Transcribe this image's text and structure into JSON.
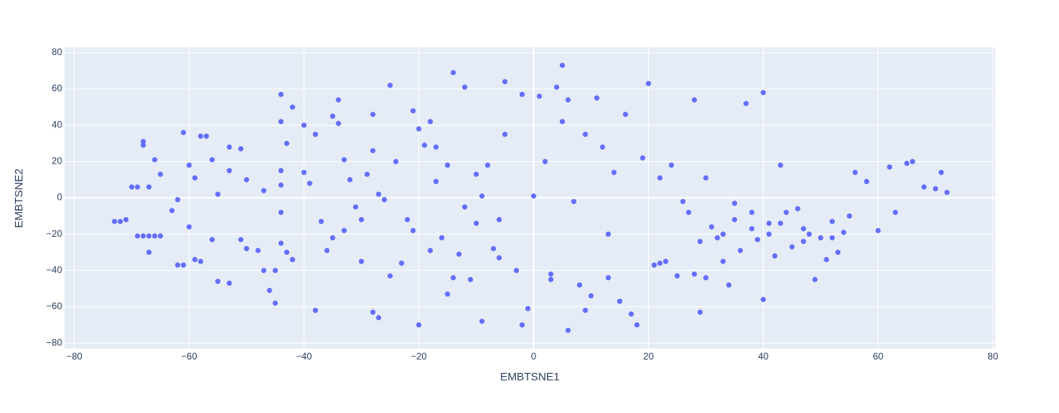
{
  "chart_data": {
    "type": "scatter",
    "color": "#636efa",
    "grid": true,
    "x_label": "EMBTSNE1",
    "y_label": "EMBTSNE2",
    "xlim": [
      -81.7,
      80.4
    ],
    "ylim": [
      -83,
      83
    ],
    "xticks": [
      {
        "value": -80,
        "label": "−80"
      },
      {
        "value": -60,
        "label": "−60"
      },
      {
        "value": -40,
        "label": "−40"
      },
      {
        "value": -20,
        "label": "−20"
      },
      0,
      20,
      40,
      60,
      80
    ],
    "yticks": [
      {
        "value": -80,
        "label": "−80"
      },
      {
        "value": -60,
        "label": "−60"
      },
      {
        "value": -40,
        "label": "−40"
      },
      {
        "value": -20,
        "label": "−20"
      },
      0,
      20,
      40,
      60,
      80
    ],
    "x": [
      -73,
      -72,
      -71,
      -69,
      -68,
      -67,
      -65,
      -70,
      -69,
      -67,
      -68,
      -68,
      -67,
      -66,
      -65,
      -63,
      -62,
      -61,
      -60,
      -60,
      -59,
      -58,
      -57,
      -62,
      -61,
      -59,
      -58,
      -56,
      -56,
      -55,
      -55,
      -53,
      -51,
      -53,
      -53,
      -51,
      -50,
      -50,
      -48,
      -47,
      -47,
      -46,
      -45,
      -45,
      -44,
      -44,
      -44,
      -43,
      -42,
      -44,
      -43,
      -44,
      -42,
      -40,
      -40,
      -39,
      -38,
      -37,
      -36,
      -35,
      -34,
      -34,
      -33,
      -33,
      -32,
      -31,
      -30,
      -30,
      -28,
      -29,
      -28,
      -27,
      -26,
      -25,
      -25,
      -23,
      -22,
      -21,
      -21,
      -20,
      -19,
      -18,
      -18,
      -17,
      -16,
      -15,
      -14,
      -13,
      -12,
      -12,
      -11,
      -10,
      -10,
      -9,
      -8,
      -7,
      -6,
      -5,
      -5,
      -3,
      -2,
      -1,
      0,
      1,
      2,
      3,
      4,
      5,
      6,
      7,
      8,
      9,
      10,
      11,
      12,
      13,
      14,
      15,
      16,
      17,
      18,
      19,
      20,
      21,
      22,
      23,
      24,
      25,
      26,
      27,
      28,
      28,
      29,
      30,
      30,
      31,
      32,
      33,
      34,
      35,
      36,
      37,
      38,
      39,
      40,
      40,
      41,
      42,
      43,
      44,
      45,
      46,
      47,
      48,
      49,
      50,
      51,
      52,
      53,
      54,
      55,
      56,
      58,
      60,
      62,
      63,
      65,
      66,
      68,
      70,
      71,
      72,
      41,
      43,
      38,
      33,
      29,
      47,
      52,
      35,
      -44,
      -66,
      -35,
      -24,
      -17,
      -14,
      -9,
      3,
      9,
      -20,
      -6,
      -38,
      -27,
      -28,
      -15,
      -2,
      5,
      6,
      13,
      22
    ],
    "values": [
      -13,
      -13,
      -12,
      -21,
      -21,
      -21,
      -21,
      6,
      6,
      6,
      29,
      31,
      -30,
      21,
      13,
      -7,
      -1,
      36,
      -16,
      18,
      11,
      34,
      34,
      -37,
      -37,
      -34,
      -35,
      -23,
      21,
      -46,
      2,
      28,
      27,
      15,
      -47,
      -23,
      -28,
      10,
      -29,
      4,
      -40,
      -51,
      -58,
      -40,
      -25,
      15,
      -8,
      -30,
      -34,
      42,
      30,
      57,
      50,
      40,
      14,
      8,
      35,
      -13,
      -29,
      45,
      41,
      54,
      -18,
      21,
      10,
      -5,
      -12,
      -35,
      -63,
      13,
      26,
      2,
      -1,
      62,
      -43,
      -36,
      -12,
      -18,
      48,
      38,
      29,
      42,
      -29,
      28,
      -22,
      -53,
      -44,
      -31,
      -5,
      61,
      -45,
      -14,
      13,
      1,
      18,
      -28,
      -33,
      64,
      35,
      -40,
      -70,
      -61,
      1,
      56,
      20,
      -42,
      61,
      42,
      -73,
      -2,
      -48,
      35,
      -54,
      55,
      28,
      -44,
      14,
      -57,
      46,
      -64,
      -70,
      22,
      63,
      -37,
      -36,
      -35,
      18,
      -43,
      -2,
      -8,
      54,
      -42,
      -63,
      -44,
      11,
      -16,
      -22,
      -35,
      -48,
      -12,
      -29,
      52,
      -17,
      -23,
      58,
      -56,
      -14,
      -32,
      18,
      -8,
      -27,
      -6,
      -24,
      -20,
      -45,
      -22,
      -34,
      -13,
      -30,
      -19,
      -10,
      14,
      9,
      -18,
      17,
      -8,
      19,
      20,
      6,
      5,
      14,
      3,
      -20,
      -14,
      -8,
      -20,
      -24,
      -17,
      -22,
      -3,
      7,
      -21,
      -22,
      20,
      9,
      69,
      -68,
      -45,
      -62,
      -70,
      -12,
      -62,
      -66,
      46,
      18,
      57,
      73,
      54,
      -20,
      11
    ]
  }
}
